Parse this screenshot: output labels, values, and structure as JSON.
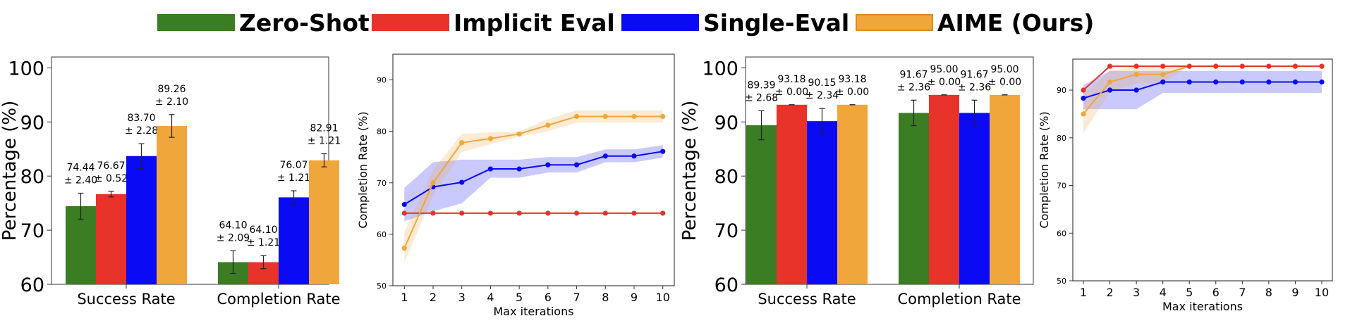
{
  "legend": [
    {
      "label": "Zero-Shot",
      "color": "#3a7d22"
    },
    {
      "label": "Implicit Eval",
      "color": "#e8332a"
    },
    {
      "label": "Single-Eval",
      "color": "#0a0af5"
    },
    {
      "label": "AIME (Ours)",
      "color": "#f0a63b"
    }
  ],
  "chart_data": [
    {
      "type": "bar",
      "ylabel": "Percentage (%)",
      "ylim": [
        60,
        102
      ],
      "yticks": [
        60,
        70,
        80,
        90,
        100
      ],
      "categories": [
        "Success Rate",
        "Completion Rate"
      ],
      "series": [
        {
          "name": "Zero-Shot",
          "color": "#3a7d22",
          "values": [
            74.44,
            64.1
          ],
          "errors": [
            2.4,
            2.09
          ],
          "labels": [
            [
              "74.44",
              "± 2.40"
            ],
            [
              "64.10",
              "± 2.09"
            ]
          ]
        },
        {
          "name": "Implicit Eval",
          "color": "#e8332a",
          "values": [
            76.67,
            64.1
          ],
          "errors": [
            0.52,
            1.21
          ],
          "labels": [
            [
              "76.67",
              "± 0.52"
            ],
            [
              "64.10",
              "± 1.21"
            ]
          ]
        },
        {
          "name": "Single-Eval",
          "color": "#0a0af5",
          "values": [
            83.7,
            76.07
          ],
          "errors": [
            2.28,
            1.21
          ],
          "labels": [
            [
              "83.70",
              "± 2.28"
            ],
            [
              "76.07",
              "± 1.21"
            ]
          ]
        },
        {
          "name": "AIME (Ours)",
          "color": "#f0a63b",
          "values": [
            89.26,
            82.91
          ],
          "errors": [
            2.1,
            1.21
          ],
          "labels": [
            [
              "89.26",
              "± 2.10"
            ],
            [
              "82.91",
              "± 1.21"
            ]
          ]
        }
      ]
    },
    {
      "type": "line",
      "xlabel": "Max iterations",
      "ylabel": "Completion Rate (%)",
      "x": [
        1,
        2,
        3,
        4,
        5,
        6,
        7,
        8,
        9,
        10
      ],
      "xlim": [
        0.6,
        10.4
      ],
      "ylim": [
        50,
        95
      ],
      "yticks": [
        50,
        60,
        70,
        80,
        90
      ],
      "series": [
        {
          "name": "Implicit Eval",
          "color": "#e8332a",
          "values": [
            64.1,
            64.1,
            64.1,
            64.1,
            64.1,
            64.1,
            64.1,
            64.1,
            64.1,
            64.1
          ],
          "lower": [
            64.1,
            64.1,
            64.1,
            64.1,
            64.1,
            64.1,
            64.1,
            64.1,
            64.1,
            64.1
          ],
          "upper": [
            64.1,
            64.1,
            64.1,
            64.1,
            64.1,
            64.1,
            64.1,
            64.1,
            64.1,
            64.1
          ]
        },
        {
          "name": "Single-Eval",
          "color": "#0a0af5",
          "values": [
            65.8,
            69.2,
            70.1,
            72.7,
            72.7,
            73.5,
            73.5,
            75.2,
            75.2,
            76.1
          ],
          "lower": [
            62.5,
            64.5,
            66.0,
            71.0,
            71.0,
            72.0,
            72.0,
            74.0,
            74.0,
            74.9
          ],
          "upper": [
            69.0,
            74.0,
            74.5,
            74.5,
            74.5,
            75.0,
            75.0,
            76.5,
            76.5,
            77.3
          ]
        },
        {
          "name": "AIME (Ours)",
          "color": "#f0a63b",
          "values": [
            57.3,
            70.0,
            77.8,
            78.6,
            79.5,
            81.2,
            82.9,
            82.9,
            82.9,
            82.9
          ],
          "lower": [
            54.5,
            67.5,
            76.0,
            77.5,
            79.0,
            80.0,
            81.7,
            81.7,
            81.7,
            81.7
          ],
          "upper": [
            60.5,
            72.5,
            79.5,
            79.8,
            80.0,
            82.4,
            84.1,
            84.1,
            84.1,
            84.1
          ]
        }
      ]
    },
    {
      "type": "bar",
      "ylabel": "Percentage (%)",
      "ylim": [
        60,
        102
      ],
      "yticks": [
        60,
        70,
        80,
        90,
        100
      ],
      "categories": [
        "Success Rate",
        "Completion Rate"
      ],
      "series": [
        {
          "name": "Zero-Shot",
          "color": "#3a7d22",
          "values": [
            89.39,
            91.67
          ],
          "errors": [
            2.68,
            2.36
          ],
          "labels": [
            [
              "89.39",
              "± 2.68"
            ],
            [
              "91.67",
              "± 2.36"
            ]
          ]
        },
        {
          "name": "Implicit Eval",
          "color": "#e8332a",
          "values": [
            93.18,
            95.0
          ],
          "errors": [
            0.0,
            0.0
          ],
          "labels": [
            [
              "93.18",
              "± 0.00"
            ],
            [
              "95.00",
              "± 0.00"
            ]
          ]
        },
        {
          "name": "Single-Eval",
          "color": "#0a0af5",
          "values": [
            90.15,
            91.67
          ],
          "errors": [
            2.34,
            2.36
          ],
          "labels": [
            [
              "90.15",
              "± 2.34"
            ],
            [
              "91.67",
              "± 2.36"
            ]
          ]
        },
        {
          "name": "AIME (Ours)",
          "color": "#f0a63b",
          "values": [
            93.18,
            95.0
          ],
          "errors": [
            0.0,
            0.0
          ],
          "labels": [
            [
              "93.18",
              "± 0.00"
            ],
            [
              "95.00",
              "± 0.00"
            ]
          ]
        }
      ]
    },
    {
      "type": "line",
      "xlabel": "Max iterations",
      "ylabel": "Completion Rate (%)",
      "x": [
        1,
        2,
        3,
        4,
        5,
        6,
        7,
        8,
        9,
        10
      ],
      "xlim": [
        0.6,
        10.4
      ],
      "ylim": [
        50,
        96.5
      ],
      "yticks": [
        50,
        60,
        70,
        80,
        90
      ],
      "series": [
        {
          "name": "Single-Eval",
          "color": "#0a0af5",
          "values": [
            88.3,
            90.0,
            90.0,
            91.7,
            91.7,
            91.7,
            91.7,
            91.7,
            91.7,
            91.7
          ],
          "lower": [
            86.0,
            86.0,
            86.0,
            89.4,
            89.4,
            89.4,
            89.4,
            89.4,
            89.4,
            89.4
          ],
          "upper": [
            91.0,
            94.0,
            94.0,
            94.0,
            94.0,
            94.0,
            94.0,
            94.0,
            94.0,
            94.0
          ]
        },
        {
          "name": "AIME (Ours)",
          "color": "#f0a63b",
          "values": [
            85.0,
            91.7,
            93.3,
            93.3,
            95.0,
            95.0,
            95.0,
            95.0,
            95.0,
            95.0
          ],
          "lower": [
            81.0,
            89.5,
            91.5,
            91.5,
            95.0,
            95.0,
            95.0,
            95.0,
            95.0,
            95.0
          ],
          "upper": [
            89.0,
            94.0,
            95.0,
            95.0,
            95.0,
            95.0,
            95.0,
            95.0,
            95.0,
            95.0
          ]
        },
        {
          "name": "Implicit Eval",
          "color": "#e8332a",
          "values": [
            90.0,
            95.0,
            95.0,
            95.0,
            95.0,
            95.0,
            95.0,
            95.0,
            95.0,
            95.0
          ],
          "lower": [
            90.0,
            95.0,
            95.0,
            95.0,
            95.0,
            95.0,
            95.0,
            95.0,
            95.0,
            95.0
          ],
          "upper": [
            90.0,
            95.0,
            95.0,
            95.0,
            95.0,
            95.0,
            95.0,
            95.0,
            95.0,
            95.0
          ]
        }
      ]
    }
  ]
}
